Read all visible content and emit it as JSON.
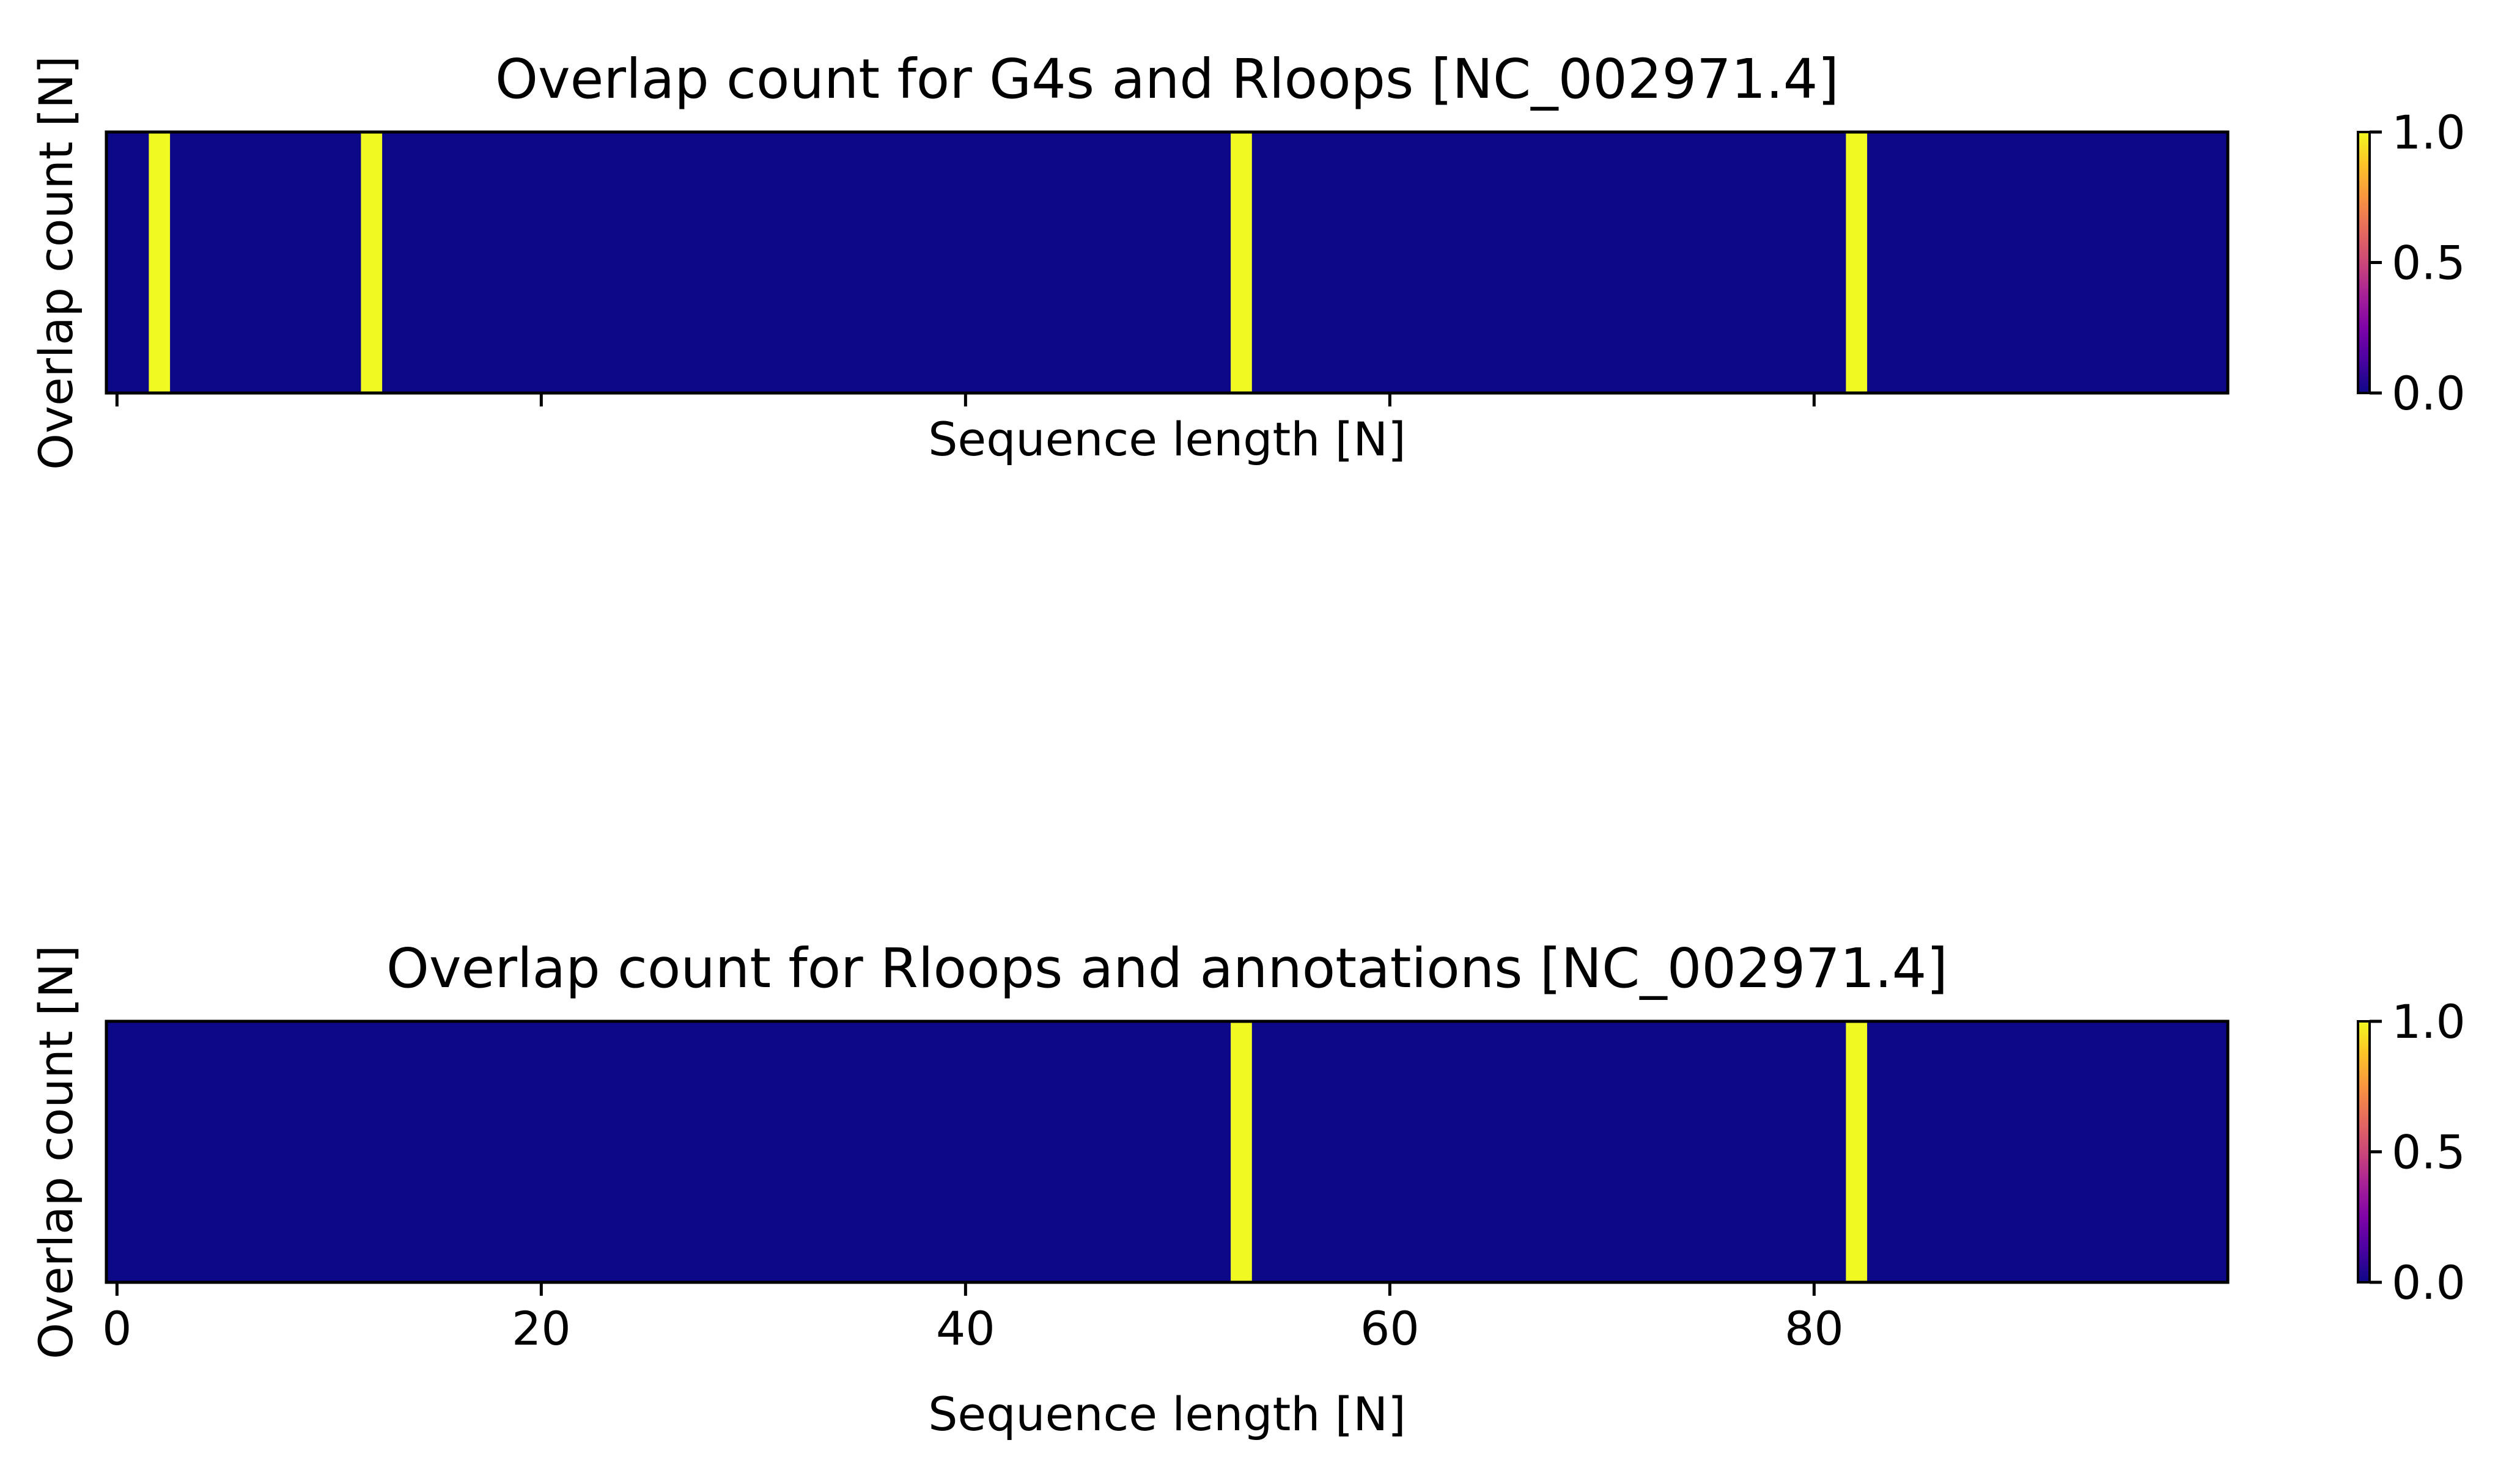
{
  "chart_data": [
    {
      "type": "heatmap",
      "title": "Overlap count for G4s and Rloops [NC_002971.4]",
      "xlabel": "Sequence length [N]",
      "ylabel": "Overlap count [N]",
      "xlim": [
        -0.5,
        99.5
      ],
      "x_ticks": [
        0,
        20,
        40,
        60,
        80
      ],
      "x_tick_labels_visible": false,
      "y_ticks_visible": false,
      "colormap": "plasma",
      "background_color": "#0d0887",
      "highlight_color": "#f0f921",
      "colorbar": {
        "min": 0.0,
        "max": 1.0,
        "ticks": [
          0.0,
          0.5,
          1.0
        ],
        "tick_labels": [
          "0.0",
          "0.5",
          "1.0"
        ]
      },
      "highlighted_positions": [
        2,
        12,
        53,
        82
      ],
      "values": [
        0,
        0,
        1,
        0,
        0,
        0,
        0,
        0,
        0,
        0,
        0,
        0,
        1,
        0,
        0,
        0,
        0,
        0,
        0,
        0,
        0,
        0,
        0,
        0,
        0,
        0,
        0,
        0,
        0,
        0,
        0,
        0,
        0,
        0,
        0,
        0,
        0,
        0,
        0,
        0,
        0,
        0,
        0,
        0,
        0,
        0,
        0,
        0,
        0,
        0,
        0,
        0,
        0,
        1,
        0,
        0,
        0,
        0,
        0,
        0,
        0,
        0,
        0,
        0,
        0,
        0,
        0,
        0,
        0,
        0,
        0,
        0,
        0,
        0,
        0,
        0,
        0,
        0,
        0,
        0,
        0,
        0,
        1,
        0,
        0,
        0,
        0,
        0,
        0,
        0,
        0,
        0,
        0,
        0,
        0,
        0,
        0,
        0,
        0,
        0
      ]
    },
    {
      "type": "heatmap",
      "title": "Overlap count for Rloops and annotations [NC_002971.4]",
      "xlabel": "Sequence length [N]",
      "ylabel": "Overlap count [N]",
      "xlim": [
        -0.5,
        99.5
      ],
      "x_ticks": [
        0,
        20,
        40,
        60,
        80
      ],
      "x_tick_labels": [
        "0",
        "20",
        "40",
        "60",
        "80"
      ],
      "x_tick_labels_visible": true,
      "y_ticks_visible": false,
      "colormap": "plasma",
      "background_color": "#0d0887",
      "highlight_color": "#f0f921",
      "colorbar": {
        "min": 0.0,
        "max": 1.0,
        "ticks": [
          0.0,
          0.5,
          1.0
        ],
        "tick_labels": [
          "0.0",
          "0.5",
          "1.0"
        ]
      },
      "highlighted_positions": [
        53,
        82
      ],
      "values": [
        0,
        0,
        0,
        0,
        0,
        0,
        0,
        0,
        0,
        0,
        0,
        0,
        0,
        0,
        0,
        0,
        0,
        0,
        0,
        0,
        0,
        0,
        0,
        0,
        0,
        0,
        0,
        0,
        0,
        0,
        0,
        0,
        0,
        0,
        0,
        0,
        0,
        0,
        0,
        0,
        0,
        0,
        0,
        0,
        0,
        0,
        0,
        0,
        0,
        0,
        0,
        0,
        0,
        1,
        0,
        0,
        0,
        0,
        0,
        0,
        0,
        0,
        0,
        0,
        0,
        0,
        0,
        0,
        0,
        0,
        0,
        0,
        0,
        0,
        0,
        0,
        0,
        0,
        0,
        0,
        0,
        0,
        1,
        0,
        0,
        0,
        0,
        0,
        0,
        0,
        0,
        0,
        0,
        0,
        0,
        0,
        0,
        0,
        0,
        0
      ]
    }
  ]
}
